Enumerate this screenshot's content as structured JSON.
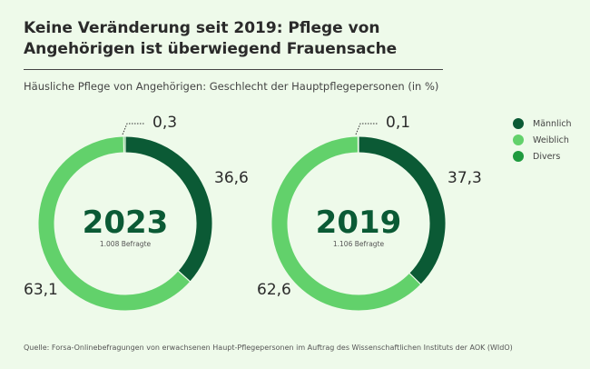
{
  "title": "Keine Veränderung seit 2019: Pflege von Angehörigen ist überwiegend Frauensache",
  "subtitle": "Häusliche Pflege von Angehörigen: Geschlecht der Hauptpflegepersonen (in %)",
  "source": "Quelle: Forsa-Onlinebefragungen von erwachsenen Haupt-Pflegepersonen im Auftrag des Wissenschaftlichen Instituts der AOK (WIdO)",
  "legend": [
    {
      "label": "Männlich",
      "color": "#0b5a35"
    },
    {
      "label": "Weiblich",
      "color": "#62d16b"
    },
    {
      "label": "Divers",
      "color": "#1f9a3e"
    }
  ],
  "chart_data": [
    {
      "type": "pie",
      "title": "2023",
      "subtitle": "1.008 Befragte",
      "categories": [
        "Männlich",
        "Weiblich",
        "Divers"
      ],
      "values": [
        36.6,
        63.1,
        0.3
      ],
      "labels": [
        "36,6",
        "63,1",
        "0,3"
      ]
    },
    {
      "type": "pie",
      "title": "2019",
      "subtitle": "1.106 Befragte",
      "categories": [
        "Männlich",
        "Weiblich",
        "Divers"
      ],
      "values": [
        37.3,
        62.6,
        0.1
      ],
      "labels": [
        "37,3",
        "62,6",
        "0,1"
      ]
    }
  ]
}
